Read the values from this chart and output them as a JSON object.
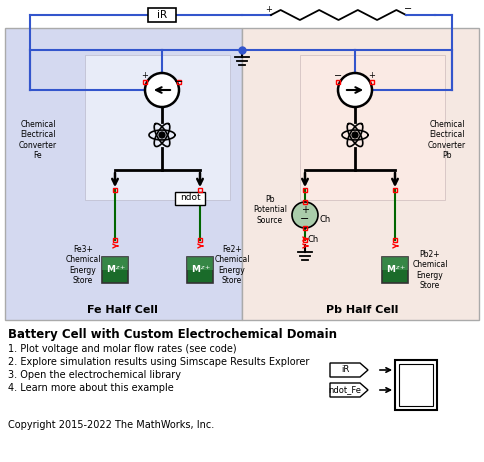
{
  "title": "Battery Cell with Custom Electrochemical Domain",
  "items": [
    "1. Plot voltage and molar flow rates (see code)",
    "2. Explore simulation results using Simscape Results Explorer",
    "3. Open the electrochemical library",
    "4. Learn more about this example"
  ],
  "copyright": "Copyright 2015-2022 The MathWorks, Inc.",
  "fe_label": "Fe Half Cell",
  "pb_label": "Pb Half Cell",
  "fe_bg": "#d4d9f0",
  "pb_bg": "#f5e8e2",
  "inner_fe_bg": "#e8ecf8",
  "inner_pb_bg": "#faeae4",
  "wire_color": "#3355cc",
  "green_line": "#006600",
  "resistor_color": "#000000",
  "fig_w": 4.84,
  "fig_h": 4.62,
  "dpi": 100
}
